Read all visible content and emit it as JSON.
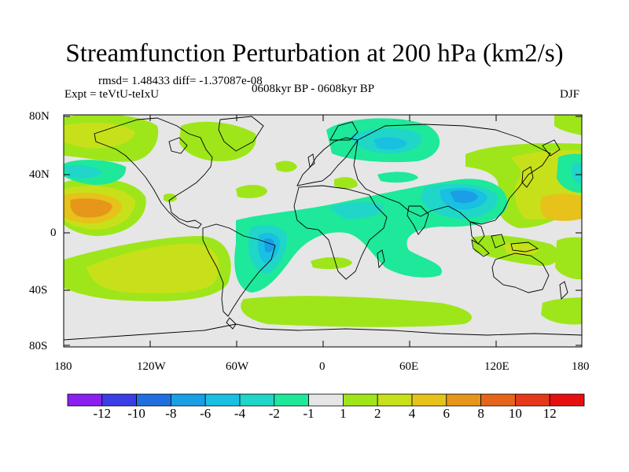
{
  "title": "Streamfunction Perturbation at 200 hPa (km2/s)",
  "stats_line": "rmsd= 1.48433 diff= -1.37087e-08",
  "period_line": "0608kyr BP - 0608kyr BP",
  "experiment_line": "Expt = teVtU-teIxU",
  "season": "DJF",
  "axes": {
    "lat_ticks": [
      "80N",
      "40N",
      "0",
      "40S",
      "80S"
    ],
    "lon_ticks": [
      "180",
      "120W",
      "60W",
      "0",
      "60E",
      "120E",
      "180"
    ]
  },
  "colorbar": {
    "labels": [
      "-12",
      "-10",
      "-8",
      "-6",
      "-4",
      "-2",
      "-1",
      "1",
      "2",
      "4",
      "6",
      "8",
      "10",
      "12"
    ],
    "colors": [
      "#8a1ff0",
      "#3a3ee6",
      "#1f6fe0",
      "#1a9ee6",
      "#19c0e2",
      "#1fd6c8",
      "#1ee89a",
      "#e6e6e6",
      "#9ee61a",
      "#c8e01a",
      "#e6c21a",
      "#e6961a",
      "#e6651a",
      "#e6381a",
      "#e60f0f"
    ]
  },
  "colors": {
    "background": "#e6e6e6",
    "neg_light": "#1ee89a",
    "neg_mid": "#1fd6c8",
    "neg_strong": "#19c0e2",
    "neg_core": "#1a9ee6",
    "pos_light": "#9ee61a",
    "pos_mid": "#c8e01a",
    "pos_strong": "#e6c21a",
    "pos_core": "#e6961a",
    "coast": "#000000"
  }
}
